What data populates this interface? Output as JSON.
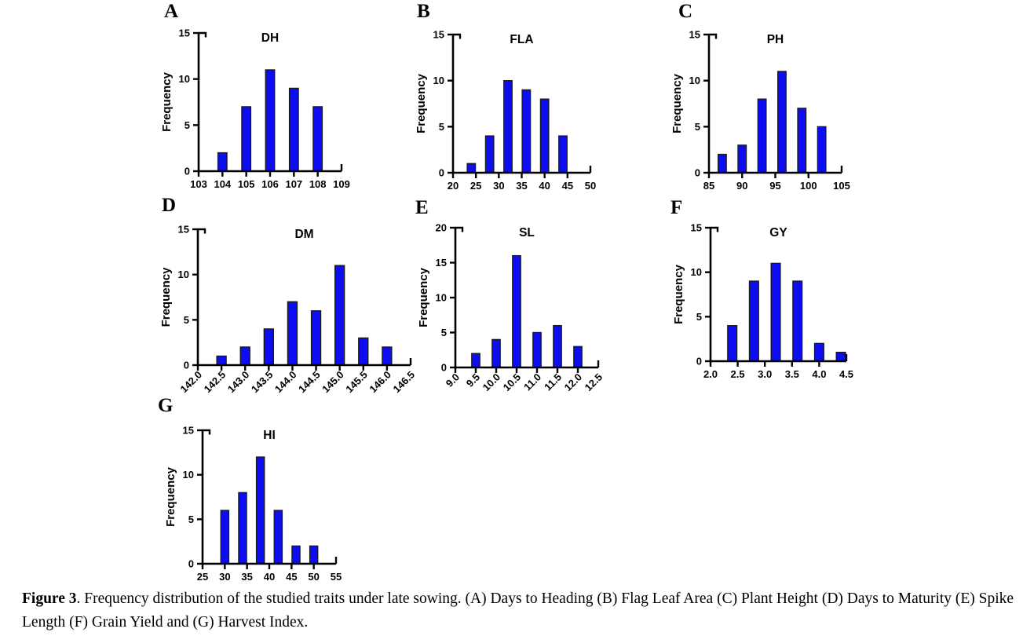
{
  "figure": {
    "caption_prefix": "Figure 3",
    "caption_rest": ". Frequency distribution of the studied traits under late sowing. (A) Days to Heading (B) Flag Leaf Area (C) Plant Height (D) Days to Maturity (E) Spike Length (F) Grain Yield and (G) Harvest Index."
  },
  "style": {
    "bar_color": "#0d0df2",
    "bar_stroke": "#1a1a1a",
    "axis_color": "#000000",
    "text_color": "#000000"
  },
  "chart_data": [
    {
      "letter": "A",
      "title": "DH",
      "type": "bar",
      "ylabel": "Frequency",
      "xlim": [
        103,
        109
      ],
      "ylim": [
        0,
        15
      ],
      "yticks": [
        0,
        5,
        10,
        15
      ],
      "xticks": [
        103,
        104,
        105,
        106,
        107,
        108,
        109
      ],
      "xtick_labels": [
        "103",
        "104",
        "105",
        "106",
        "107",
        "108",
        "109"
      ],
      "rotated_xtick_labels": false,
      "bar_width": 0.38,
      "x": [
        104,
        105,
        106,
        107,
        108
      ],
      "values": [
        2,
        7,
        11,
        9,
        7
      ]
    },
    {
      "letter": "B",
      "title": "FLA",
      "type": "bar",
      "ylabel": "Frequency",
      "xlim": [
        20,
        50
      ],
      "ylim": [
        0,
        15
      ],
      "yticks": [
        0,
        5,
        10,
        15
      ],
      "xticks": [
        20,
        25,
        30,
        35,
        40,
        45,
        50
      ],
      "xtick_labels": [
        "20",
        "25",
        "30",
        "35",
        "40",
        "45",
        "50"
      ],
      "rotated_xtick_labels": false,
      "bar_width": 1.8,
      "x": [
        24,
        28,
        32,
        36,
        40,
        44
      ],
      "values": [
        1,
        4,
        10,
        9,
        8,
        4
      ]
    },
    {
      "letter": "C",
      "title": "PH",
      "type": "bar",
      "ylabel": "Frequency",
      "xlim": [
        85,
        105
      ],
      "ylim": [
        0,
        15
      ],
      "yticks": [
        0,
        5,
        10,
        15
      ],
      "xticks": [
        85,
        90,
        95,
        100,
        105
      ],
      "xtick_labels": [
        "85",
        "90",
        "95",
        "100",
        "105"
      ],
      "rotated_xtick_labels": false,
      "bar_width": 1.25,
      "x": [
        87,
        90,
        93,
        96,
        99,
        102
      ],
      "values": [
        2,
        3,
        8,
        11,
        7,
        5
      ]
    },
    {
      "letter": "D",
      "title": "DM",
      "type": "bar",
      "ylabel": "Frequency",
      "xlim": [
        142,
        146.5
      ],
      "ylim": [
        0,
        15
      ],
      "yticks": [
        0,
        5,
        10,
        15
      ],
      "xticks": [
        142,
        142.5,
        143,
        143.5,
        144,
        144.5,
        145,
        145.5,
        146,
        146.5
      ],
      "xtick_labels": [
        "142.0",
        "142.5",
        "143.0",
        "143.5",
        "144.0",
        "144.5",
        "145.0",
        "145.5",
        "146.0",
        "146.5"
      ],
      "rotated_xtick_labels": true,
      "bar_width": 0.2,
      "x": [
        142.5,
        143,
        143.5,
        144,
        144.5,
        145,
        145.5,
        146
      ],
      "values": [
        1,
        2,
        4,
        7,
        6,
        11,
        3,
        2
      ]
    },
    {
      "letter": "E",
      "title": "SL",
      "type": "bar",
      "ylabel": "Frequency",
      "xlim": [
        9,
        12.5
      ],
      "ylim": [
        0,
        20
      ],
      "yticks": [
        0,
        5,
        10,
        15,
        20
      ],
      "xticks": [
        9,
        9.5,
        10,
        10.5,
        11,
        11.5,
        12,
        12.5
      ],
      "xtick_labels": [
        "9.0",
        "9.5",
        "10.0",
        "10.5",
        "11.0",
        "11.5",
        "12.0",
        "12.5"
      ],
      "rotated_xtick_labels": true,
      "bar_width": 0.2,
      "x": [
        9.5,
        10,
        10.5,
        11,
        11.5,
        12
      ],
      "values": [
        2,
        4,
        16,
        5,
        6,
        3
      ]
    },
    {
      "letter": "F",
      "title": "GY",
      "type": "bar",
      "ylabel": "Frequency",
      "xlim": [
        2,
        4.5
      ],
      "ylim": [
        0,
        15
      ],
      "yticks": [
        0,
        5,
        10,
        15
      ],
      "xticks": [
        2,
        2.5,
        3,
        3.5,
        4,
        4.5
      ],
      "xtick_labels": [
        "2.0",
        "2.5",
        "3.0",
        "3.5",
        "4.0",
        "4.5"
      ],
      "rotated_xtick_labels": false,
      "bar_width": 0.17,
      "x": [
        2.4,
        2.8,
        3.2,
        3.6,
        4.0,
        4.4
      ],
      "values": [
        4,
        9,
        11,
        9,
        2,
        1
      ]
    },
    {
      "letter": "G",
      "title": "HI",
      "type": "bar",
      "ylabel": "Frequency",
      "xlim": [
        25,
        55
      ],
      "ylim": [
        0,
        15
      ],
      "yticks": [
        0,
        5,
        10,
        15
      ],
      "xticks": [
        25,
        30,
        35,
        40,
        45,
        50,
        55
      ],
      "xtick_labels": [
        "25",
        "30",
        "35",
        "40",
        "45",
        "50",
        "55"
      ],
      "rotated_xtick_labels": false,
      "bar_width": 1.8,
      "x": [
        30,
        34,
        38,
        42,
        46,
        50
      ],
      "values": [
        6,
        8,
        12,
        6,
        2,
        2
      ]
    }
  ]
}
